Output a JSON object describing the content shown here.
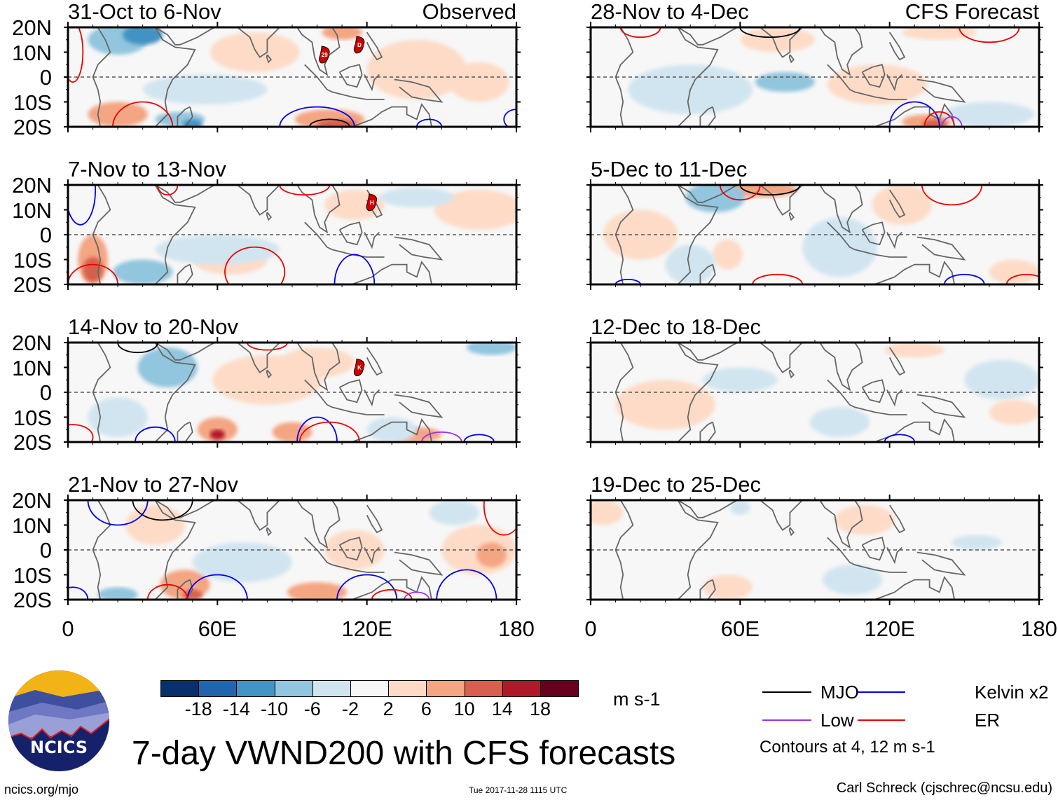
{
  "title": "7-day VWND200 with CFS forecasts",
  "observed_label": "Observed",
  "forecast_label": "CFS Forecast",
  "y_axis_labels": [
    "20N",
    "10N",
    "0",
    "10S",
    "20S"
  ],
  "x_axis_labels": [
    "0",
    "60E",
    "120E",
    "180"
  ],
  "panels": [
    {
      "id": "obs-1",
      "column": "observed",
      "period": "31-Oct to 6-Nov",
      "tag": "Observed",
      "storms": [
        {
          "label": "29",
          "lon": 103,
          "lat": 9
        },
        {
          "label": "D",
          "lon": 117,
          "lat": 13
        }
      ]
    },
    {
      "id": "obs-2",
      "column": "observed",
      "period": "7-Nov to 13-Nov",
      "tag": "",
      "storms": [
        {
          "label": "H",
          "lon": 122,
          "lat": 13
        }
      ]
    },
    {
      "id": "obs-3",
      "column": "observed",
      "period": "14-Nov to 20-Nov",
      "tag": "",
      "storms": [
        {
          "label": "K",
          "lon": 117,
          "lat": 10
        }
      ]
    },
    {
      "id": "obs-4",
      "column": "observed",
      "period": "21-Nov to 27-Nov",
      "tag": "",
      "storms": []
    },
    {
      "id": "fc-1",
      "column": "forecast",
      "period": "28-Nov to 4-Dec",
      "tag": "CFS Forecast",
      "storms": []
    },
    {
      "id": "fc-2",
      "column": "forecast",
      "period": "5-Dec to 11-Dec",
      "tag": "",
      "storms": []
    },
    {
      "id": "fc-3",
      "column": "forecast",
      "period": "12-Dec to 18-Dec",
      "tag": "",
      "storms": []
    },
    {
      "id": "fc-4",
      "column": "forecast",
      "period": "19-Dec to 25-Dec",
      "tag": "",
      "storms": []
    }
  ],
  "colorbar": {
    "unit": "m s-1",
    "ticks": [
      "-18",
      "-14",
      "-10",
      "-6",
      "-2",
      "2",
      "6",
      "10",
      "14",
      "18"
    ],
    "colors": [
      "#08306b",
      "#2166ac",
      "#4393c3",
      "#92c5de",
      "#d1e5f0",
      "#f7f7f7",
      "#fddbc7",
      "#f4a582",
      "#d6604d",
      "#b2182b",
      "#67001f"
    ]
  },
  "legend": {
    "items": [
      {
        "label": "MJO",
        "color": "#000000"
      },
      {
        "label": "Kelvin x2",
        "color": "#0000ee"
      },
      {
        "label": "Low",
        "color": "#9933ee"
      },
      {
        "label": "ER",
        "color": "#ee0000"
      }
    ],
    "contour_note": "Contours at 4, 12 m s-1"
  },
  "logo": {
    "text": "NCICS"
  },
  "footer": {
    "left": "ncics.org/mjo",
    "middle": "Tue 2017-11-28 1115 UTC",
    "right": "Carl Schreck (cjschrec@ncsu.edu)"
  },
  "map": {
    "lon_range": [
      0,
      180
    ],
    "lat_range": [
      -20,
      20
    ]
  }
}
